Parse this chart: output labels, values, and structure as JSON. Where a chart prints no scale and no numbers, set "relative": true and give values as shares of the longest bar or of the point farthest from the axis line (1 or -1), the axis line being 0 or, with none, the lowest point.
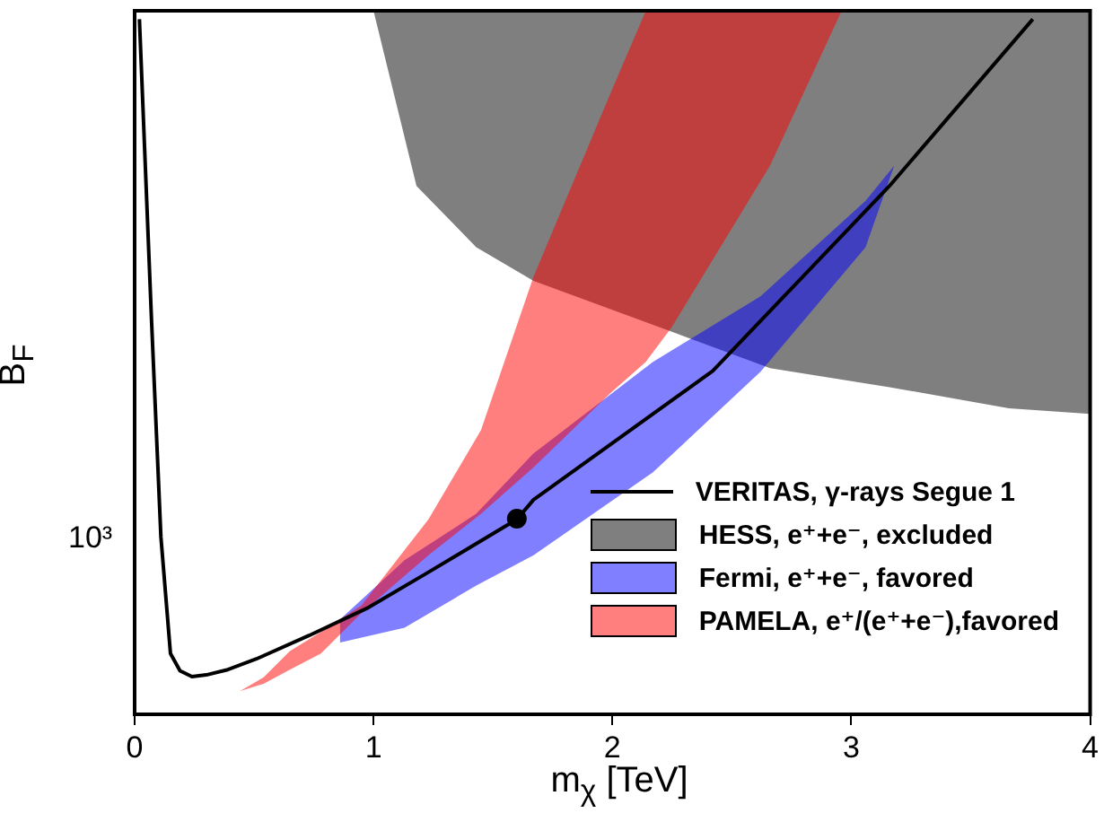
{
  "chart_data": {
    "type": "line",
    "relative": true,
    "xlabel": "m$_{χ}$ [TeV]",
    "ylabel": "B$_{F}$",
    "legend": "bottom right",
    "annotations": [
      "10³"
    ],
    "xlim": [
      0,
      4
    ],
    "xticks": [
      0,
      1,
      2,
      3,
      4
    ],
    "series": [
      {
        "name": "VERITAS, γ-rays Segue 1",
        "color": "#000000",
        "x": [
          0.02,
          0.07,
          0.11,
          0.15,
          0.19,
          0.24,
          0.3,
          0.39,
          0.51,
          0.73,
          0.98,
          1.23,
          1.6,
          1.67,
          2.42,
          3.16,
          3.76
        ],
        "values": [
          0.988,
          0.566,
          0.252,
          0.0865,
          0.0618,
          0.0535,
          0.056,
          0.0635,
          0.0788,
          0.112,
          0.152,
          0.202,
          0.277,
          0.305,
          0.488,
          0.751,
          0.988
        ]
      },
      {
        "type": "area",
        "name": "HESS, e⁺+e⁻, excluded",
        "color": "#000000",
        "x": [
          1.0,
          4.0,
          4.0,
          3.66,
          3.16,
          2.66,
          2.27,
          1.67,
          1.43,
          1.18
        ],
        "values": [
          1,
          1,
          0.427,
          0.435,
          0.465,
          0.492,
          0.541,
          0.616,
          0.664,
          0.751
        ]
      },
      {
        "type": "area",
        "name": "Fermi, e⁺+e⁻, favored",
        "color": "#0000ff",
        "x": [
          0.86,
          1.13,
          1.43,
          1.67,
          2.17,
          2.62,
          3.06,
          3.18,
          3.06,
          2.62,
          2.17,
          1.67,
          1.43,
          1.13,
          0.86
        ],
        "values": [
          0.135,
          0.219,
          0.285,
          0.371,
          0.501,
          0.594,
          0.73,
          0.78,
          0.664,
          0.487,
          0.344,
          0.226,
          0.183,
          0.123,
          0.102
        ]
      },
      {
        "type": "area",
        "name": "PAMELA, e⁺/(e⁺+e⁻),favored",
        "color": "#ff0000",
        "x": [
          0.44,
          0.54,
          0.65,
          0.78,
          0.95,
          1.23,
          1.45,
          1.67,
          1.99,
          2.14,
          2.96,
          2.66,
          2.25,
          2.14,
          1.99,
          1.67,
          1.45,
          1.23,
          0.95,
          0.78,
          0.65,
          0.54
        ],
        "values": [
          0.0328,
          0.0525,
          0.0898,
          0.117,
          0.155,
          0.277,
          0.404,
          0.622,
          0.881,
          1,
          1,
          0.78,
          0.551,
          0.501,
          0.456,
          0.351,
          0.285,
          0.226,
          0.144,
          0.0865,
          0.0635,
          0.0435
        ]
      },
      {
        "type": "scatter",
        "color": "#000000",
        "marker": "circle",
        "x": [
          1.6
        ],
        "values": [
          0.278
        ]
      }
    ]
  }
}
